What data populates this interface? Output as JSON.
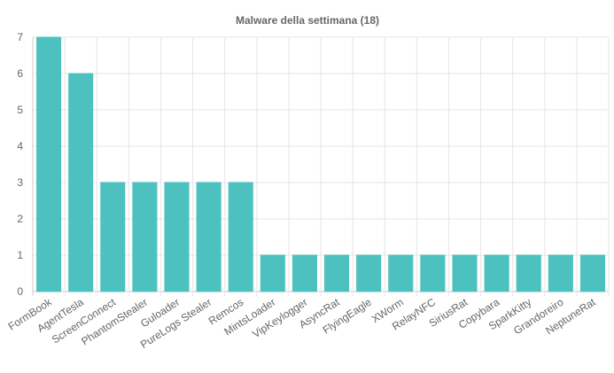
{
  "chart_data": {
    "type": "bar",
    "title": "Malware della settimana (18)",
    "xlabel": "",
    "ylabel": "",
    "categories": [
      "FormBook",
      "AgentTesla",
      "ScreenConnect",
      "PhantomStealer",
      "Guloader",
      "PureLogs Stealer",
      "Remcos",
      "MintsLoader",
      "VipKeylogger",
      "AsyncRat",
      "FlyingEagle",
      "XWorm",
      "RelayNFC",
      "SiriusRat",
      "Copybara",
      "SparkKitty",
      "Grandoreiro",
      "NeptuneRat"
    ],
    "values": [
      7,
      6,
      3,
      3,
      3,
      3,
      3,
      1,
      1,
      1,
      1,
      1,
      1,
      1,
      1,
      1,
      1,
      1
    ],
    "ylim": [
      0,
      7
    ],
    "yticks": [
      "0",
      "1",
      "2",
      "3",
      "4",
      "5",
      "6",
      "7"
    ],
    "grid": true,
    "legend": "none",
    "colors": {
      "bar": "#4dc0c0",
      "bar_border": "#4dc0c0",
      "grid": "#e6e6e6",
      "text": "#666666"
    }
  }
}
